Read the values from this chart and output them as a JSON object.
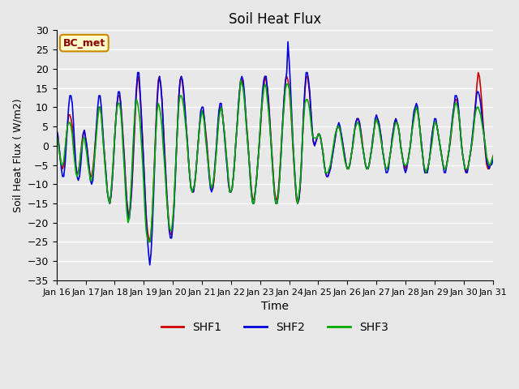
{
  "title": "Soil Heat Flux",
  "xlabel": "Time",
  "ylabel": "Soil Heat Flux ( W/m2)",
  "ylim": [
    -35,
    30
  ],
  "yticks": [
    -35,
    -30,
    -25,
    -20,
    -15,
    -10,
    -5,
    0,
    5,
    10,
    15,
    20,
    25,
    30
  ],
  "xtick_labels": [
    "Jan 16",
    "Jan 17",
    "Jan 18",
    "Jan 19",
    "Jan 20",
    "Jan 21",
    "Jan 22",
    "Jan 23",
    "Jan 24",
    "Jan 25",
    "Jan 26",
    "Jan 27",
    "Jan 28",
    "Jan 29",
    "Jan 30",
    "Jan 31"
  ],
  "xtick_positions": [
    0,
    24,
    48,
    72,
    96,
    120,
    144,
    168,
    192,
    216,
    240,
    264,
    288,
    312,
    336,
    360
  ],
  "bg_color": "#e8e8e8",
  "grid_color": "#ffffff",
  "shf1_color": "#cc0000",
  "shf2_color": "#0000dd",
  "shf3_color": "#00aa00",
  "legend_labels": [
    "SHF1",
    "SHF2",
    "SHF3"
  ],
  "annotation_text": "BC_met",
  "annotation_bg": "#ffffcc",
  "annotation_border": "#cc8800",
  "line_width": 1.2,
  "shf1": [
    4,
    3,
    0,
    -3,
    -5,
    -6,
    -5,
    -2,
    2,
    5,
    8,
    8,
    7,
    5,
    1,
    -3,
    -6,
    -7,
    -7,
    -5,
    -2,
    1,
    3,
    4,
    2,
    0,
    -3,
    -6,
    -8,
    -8,
    -6,
    -3,
    1,
    5,
    8,
    10,
    10,
    8,
    4,
    0,
    -4,
    -8,
    -12,
    -14,
    -15,
    -13,
    -9,
    -4,
    2,
    7,
    11,
    13,
    13,
    11,
    7,
    2,
    -3,
    -9,
    -14,
    -17,
    -18,
    -16,
    -12,
    -6,
    1,
    8,
    14,
    18,
    17,
    13,
    8,
    2,
    -5,
    -12,
    -18,
    -22,
    -24,
    -25,
    -23,
    -18,
    -11,
    -3,
    5,
    12,
    17,
    18,
    16,
    12,
    6,
    0,
    -6,
    -12,
    -17,
    -21,
    -23,
    -23,
    -20,
    -15,
    -8,
    -1,
    6,
    13,
    17,
    18,
    16,
    13,
    9,
    5,
    1,
    -4,
    -8,
    -11,
    -12,
    -12,
    -10,
    -7,
    -3,
    1,
    5,
    8,
    9,
    9,
    7,
    4,
    1,
    -3,
    -7,
    -10,
    -11,
    -11,
    -9,
    -5,
    -1,
    4,
    8,
    10,
    10,
    8,
    5,
    2,
    -2,
    -6,
    -10,
    -12,
    -12,
    -11,
    -8,
    -4,
    1,
    5,
    10,
    14,
    17,
    17,
    16,
    13,
    9,
    5,
    1,
    -4,
    -8,
    -12,
    -14,
    -14,
    -12,
    -9,
    -5,
    -1,
    3,
    8,
    12,
    15,
    18,
    17,
    15,
    12,
    7,
    2,
    -3,
    -8,
    -12,
    -14,
    -14,
    -12,
    -8,
    -3,
    3,
    8,
    13,
    17,
    18,
    17,
    15,
    11,
    6,
    0,
    -5,
    -10,
    -14,
    -15,
    -14,
    -11,
    -5,
    2,
    9,
    14,
    18,
    18,
    16,
    13,
    8,
    4,
    1,
    0,
    1,
    2,
    3,
    3,
    2,
    0,
    -2,
    -5,
    -7,
    -8,
    -8,
    -7,
    -6,
    -4,
    -2,
    0,
    2,
    4,
    5,
    5,
    4,
    3,
    1,
    -1,
    -3,
    -5,
    -6,
    -6,
    -5,
    -3,
    -1,
    1,
    4,
    6,
    7,
    7,
    6,
    4,
    2,
    -1,
    -3,
    -5,
    -6,
    -6,
    -5,
    -3,
    -1,
    1,
    4,
    6,
    7,
    7,
    6,
    4,
    2,
    -1,
    -3,
    -5,
    -6,
    -6,
    -5,
    -3,
    -1,
    2,
    4,
    6,
    7,
    6,
    5,
    3,
    0,
    -2,
    -4,
    -5,
    -6,
    -5,
    -4,
    -2,
    0,
    3,
    6,
    8,
    9,
    10,
    9,
    7,
    4,
    1,
    -2,
    -5,
    -7,
    -7,
    -7,
    -5,
    -3,
    0,
    3,
    5,
    6,
    6,
    5,
    3,
    1,
    -1,
    -3,
    -5,
    -6,
    -6,
    -5,
    -3,
    -1,
    1,
    4,
    7,
    10,
    12,
    12,
    11,
    8,
    5,
    1,
    -2,
    -4,
    -6,
    -7,
    -6,
    -5,
    -3,
    -1,
    1,
    4,
    8,
    12,
    16,
    19,
    18,
    15,
    11,
    6,
    2,
    -2,
    -5,
    -6,
    -6,
    -5,
    -4,
    -3,
    -2
  ],
  "shf2": [
    4,
    3,
    0,
    -3,
    -6,
    -8,
    -8,
    -5,
    0,
    5,
    10,
    13,
    13,
    11,
    6,
    0,
    -5,
    -8,
    -9,
    -8,
    -5,
    -1,
    3,
    4,
    2,
    0,
    -3,
    -6,
    -9,
    -10,
    -9,
    -5,
    0,
    5,
    10,
    13,
    13,
    10,
    5,
    0,
    -4,
    -8,
    -12,
    -14,
    -15,
    -13,
    -9,
    -4,
    2,
    7,
    11,
    14,
    14,
    11,
    6,
    1,
    -4,
    -10,
    -15,
    -18,
    -19,
    -16,
    -11,
    -4,
    3,
    10,
    15,
    19,
    19,
    14,
    8,
    1,
    -5,
    -12,
    -19,
    -24,
    -28,
    -31,
    -28,
    -22,
    -14,
    -5,
    4,
    11,
    16,
    18,
    16,
    12,
    6,
    -1,
    -7,
    -13,
    -18,
    -22,
    -24,
    -24,
    -21,
    -16,
    -9,
    -1,
    6,
    13,
    17,
    18,
    17,
    14,
    10,
    5,
    1,
    -4,
    -8,
    -11,
    -12,
    -12,
    -10,
    -7,
    -3,
    1,
    5,
    9,
    10,
    10,
    7,
    3,
    0,
    -4,
    -8,
    -11,
    -12,
    -11,
    -8,
    -4,
    0,
    5,
    9,
    11,
    11,
    8,
    5,
    1,
    -3,
    -6,
    -10,
    -12,
    -12,
    -11,
    -8,
    -4,
    1,
    5,
    10,
    14,
    17,
    18,
    17,
    14,
    9,
    4,
    0,
    -4,
    -9,
    -13,
    -15,
    -15,
    -12,
    -9,
    -5,
    -1,
    4,
    9,
    14,
    17,
    18,
    18,
    15,
    11,
    6,
    1,
    -4,
    -9,
    -13,
    -15,
    -15,
    -13,
    -9,
    -4,
    2,
    8,
    13,
    17,
    19,
    27,
    22,
    16,
    9,
    2,
    -4,
    -9,
    -13,
    -15,
    -14,
    -11,
    -6,
    2,
    9,
    15,
    19,
    19,
    17,
    14,
    9,
    4,
    1,
    0,
    1,
    2,
    3,
    3,
    2,
    0,
    -2,
    -5,
    -7,
    -8,
    -8,
    -7,
    -6,
    -4,
    -2,
    0,
    2,
    4,
    5,
    6,
    5,
    3,
    1,
    -1,
    -3,
    -5,
    -6,
    -6,
    -5,
    -3,
    -1,
    2,
    4,
    6,
    7,
    7,
    6,
    4,
    1,
    -1,
    -3,
    -5,
    -6,
    -6,
    -5,
    -3,
    -1,
    2,
    4,
    7,
    8,
    7,
    6,
    4,
    2,
    -1,
    -3,
    -5,
    -7,
    -7,
    -6,
    -3,
    -1,
    2,
    4,
    6,
    7,
    6,
    5,
    3,
    0,
    -2,
    -4,
    -6,
    -7,
    -6,
    -4,
    -2,
    0,
    3,
    6,
    9,
    10,
    11,
    10,
    7,
    4,
    1,
    -2,
    -5,
    -7,
    -7,
    -7,
    -5,
    -3,
    0,
    3,
    5,
    7,
    7,
    5,
    3,
    1,
    -1,
    -3,
    -5,
    -7,
    -7,
    -5,
    -3,
    -1,
    2,
    5,
    8,
    10,
    13,
    13,
    12,
    9,
    5,
    1,
    -2,
    -4,
    -6,
    -7,
    -7,
    -5,
    -3,
    -1,
    2,
    5,
    8,
    11,
    14,
    14,
    13,
    11,
    8,
    5,
    2,
    -1,
    -4,
    -5,
    -6,
    -5,
    -5,
    -4,
    -3
  ],
  "shf3": [
    2,
    2,
    -1,
    -3,
    -5,
    -5,
    -4,
    -1,
    2,
    5,
    6,
    6,
    5,
    3,
    -1,
    -4,
    -7,
    -8,
    -7,
    -5,
    -2,
    0,
    2,
    2,
    0,
    -2,
    -5,
    -7,
    -9,
    -9,
    -7,
    -4,
    -1,
    3,
    7,
    10,
    10,
    8,
    3,
    -1,
    -5,
    -9,
    -12,
    -14,
    -15,
    -12,
    -8,
    -3,
    2,
    7,
    10,
    11,
    11,
    9,
    5,
    -1,
    -6,
    -12,
    -17,
    -20,
    -19,
    -14,
    -8,
    -1,
    5,
    10,
    12,
    11,
    9,
    6,
    1,
    -4,
    -10,
    -17,
    -22,
    -24,
    -25,
    -25,
    -23,
    -18,
    -11,
    -4,
    3,
    9,
    11,
    10,
    8,
    5,
    0,
    -4,
    -9,
    -14,
    -18,
    -21,
    -22,
    -22,
    -19,
    -15,
    -7,
    -1,
    6,
    11,
    13,
    13,
    12,
    10,
    7,
    4,
    0,
    -4,
    -8,
    -11,
    -12,
    -11,
    -10,
    -7,
    -3,
    1,
    5,
    7,
    9,
    8,
    6,
    2,
    -1,
    -4,
    -7,
    -10,
    -11,
    -10,
    -8,
    -5,
    -1,
    3,
    7,
    9,
    10,
    8,
    5,
    2,
    -2,
    -5,
    -9,
    -12,
    -12,
    -11,
    -8,
    -4,
    1,
    5,
    9,
    13,
    17,
    16,
    15,
    12,
    8,
    4,
    0,
    -4,
    -9,
    -13,
    -15,
    -15,
    -12,
    -9,
    -5,
    -1,
    4,
    9,
    12,
    15,
    16,
    15,
    12,
    9,
    5,
    1,
    -4,
    -9,
    -13,
    -15,
    -15,
    -13,
    -9,
    -4,
    2,
    7,
    11,
    15,
    16,
    16,
    15,
    12,
    7,
    1,
    -4,
    -9,
    -13,
    -15,
    -13,
    -10,
    -5,
    2,
    7,
    11,
    12,
    12,
    11,
    9,
    6,
    3,
    2,
    2,
    2,
    2,
    3,
    3,
    2,
    0,
    -2,
    -5,
    -7,
    -7,
    -7,
    -6,
    -5,
    -3,
    -1,
    1,
    3,
    4,
    5,
    5,
    4,
    2,
    0,
    -2,
    -4,
    -5,
    -6,
    -6,
    -5,
    -3,
    -1,
    1,
    4,
    5,
    6,
    6,
    5,
    3,
    1,
    -1,
    -3,
    -5,
    -6,
    -6,
    -5,
    -3,
    -1,
    1,
    4,
    6,
    7,
    6,
    5,
    3,
    1,
    -1,
    -3,
    -5,
    -6,
    -6,
    -5,
    -3,
    -1,
    1,
    3,
    5,
    6,
    6,
    5,
    3,
    0,
    -2,
    -4,
    -5,
    -5,
    -5,
    -4,
    -2,
    0,
    3,
    5,
    7,
    9,
    10,
    9,
    7,
    4,
    0,
    -2,
    -5,
    -6,
    -7,
    -6,
    -5,
    -3,
    -1,
    1,
    4,
    6,
    6,
    5,
    3,
    1,
    -1,
    -3,
    -5,
    -6,
    -6,
    -5,
    -3,
    -1,
    2,
    4,
    7,
    9,
    11,
    11,
    10,
    8,
    5,
    1,
    -2,
    -4,
    -6,
    -6,
    -6,
    -5,
    -3,
    -1,
    1,
    4,
    7,
    9,
    10,
    10,
    9,
    8,
    6,
    4,
    2,
    0,
    -3,
    -4,
    -5,
    -5,
    -4,
    -3,
    -3
  ]
}
